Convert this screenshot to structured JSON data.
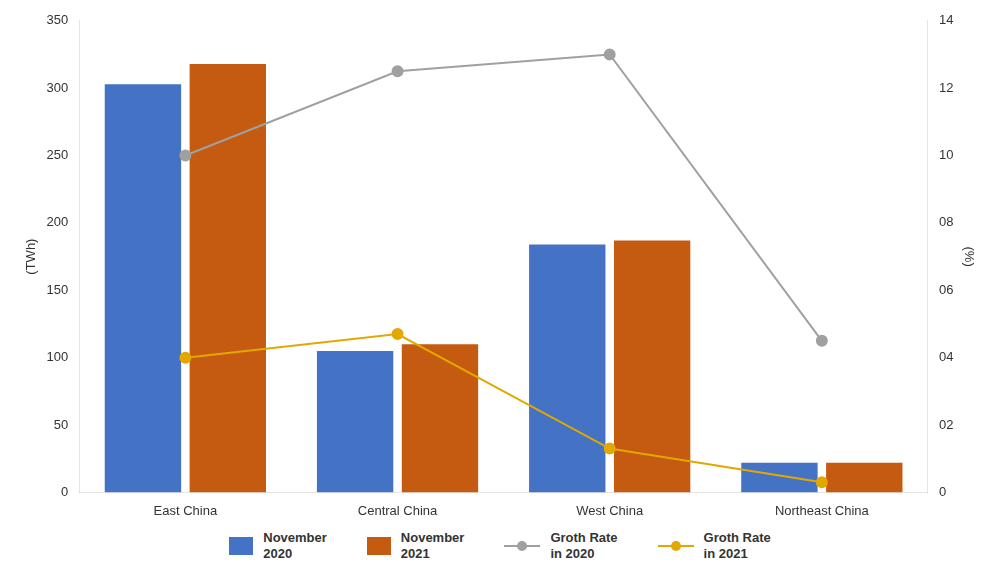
{
  "chart_data": {
    "type": "bar",
    "categories": [
      "East China",
      "Central China",
      "West China",
      "Northeast China"
    ],
    "series": [
      {
        "name": "November\n2020",
        "type": "bar",
        "color": "#4472C4",
        "values": [
          303,
          105,
          184,
          22
        ]
      },
      {
        "name": "November\n2021",
        "type": "bar",
        "color": "#C55A11",
        "values": [
          318,
          110,
          187,
          22
        ]
      },
      {
        "name": "Groth Rate\nin 2020",
        "type": "line",
        "color": "#A0A0A0",
        "marker": "circle",
        "axis": "y2",
        "values": [
          10.0,
          12.5,
          13.0,
          4.5
        ]
      },
      {
        "name": "Groth Rate\nin 2021",
        "type": "line",
        "color": "#E2A800",
        "marker": "circle",
        "axis": "y2",
        "values": [
          4.0,
          4.7,
          1.3,
          0.3
        ]
      }
    ],
    "ylabel": "(TWh)",
    "y2label": "(%)",
    "ylim": [
      0,
      350
    ],
    "yticks": [
      0,
      50,
      100,
      150,
      200,
      250,
      300,
      350
    ],
    "y2lim": [
      0,
      14
    ],
    "y2ticks": [
      0,
      {
        "value": 2,
        "label": "02"
      },
      {
        "value": 4,
        "label": "04"
      },
      {
        "value": 6,
        "label": "06"
      },
      {
        "value": 8,
        "label": "08"
      },
      10,
      12,
      14
    ],
    "grid": false,
    "legend": "bottom"
  }
}
